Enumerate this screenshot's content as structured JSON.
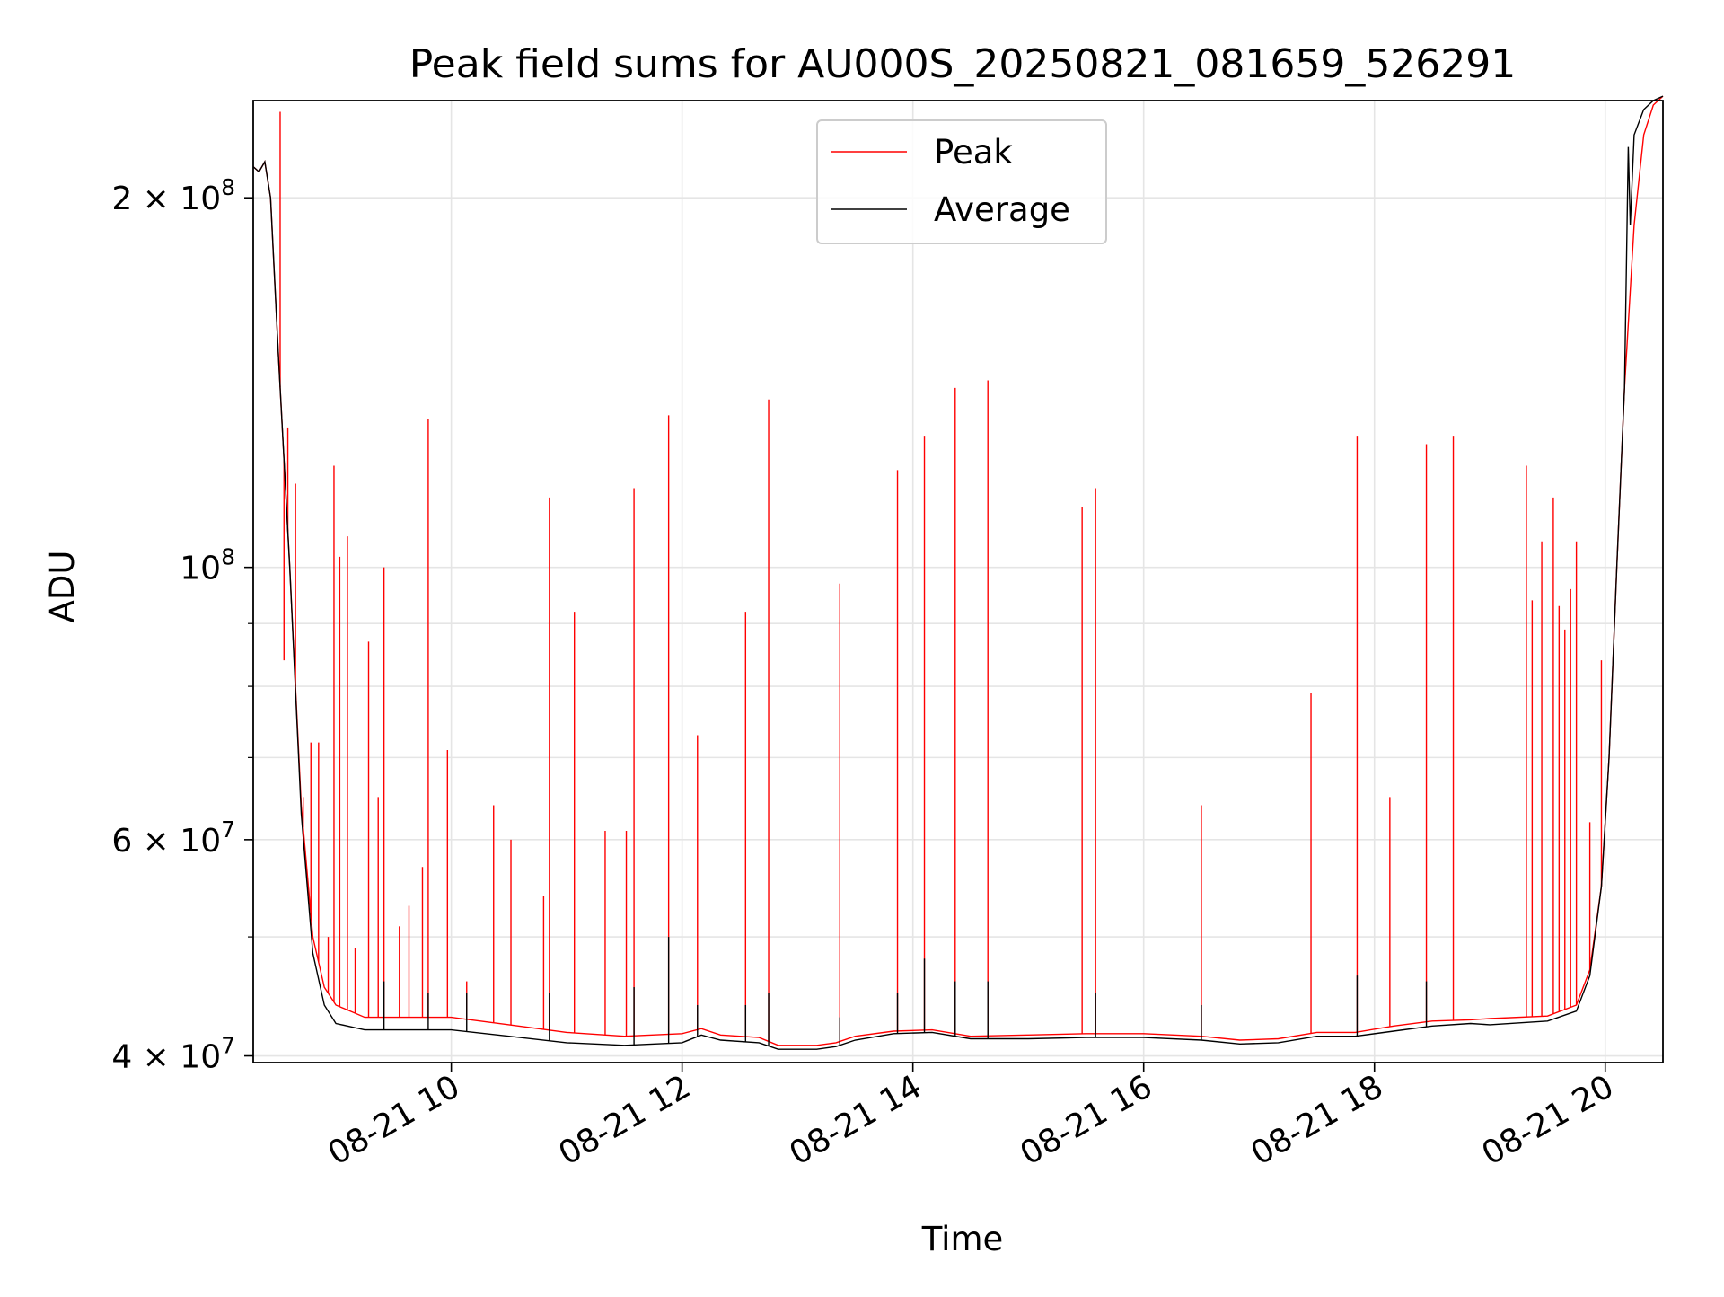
{
  "chart_data": {
    "type": "line",
    "title": "Peak field sums for AU000S_20250821_081659_526291",
    "xlabel": "Time",
    "ylabel": "ADU",
    "x_scale": "time",
    "y_scale": "log",
    "xlim": [
      "2025-08-21 08:17",
      "2025-08-21 20:30"
    ],
    "ylim": [
      39500000,
      240000000
    ],
    "grid": true,
    "legend_position": "top-center",
    "x_ticks": [
      {
        "value": "2025-08-21 10:00",
        "label": "08-21 10"
      },
      {
        "value": "2025-08-21 12:00",
        "label": "08-21 12"
      },
      {
        "value": "2025-08-21 14:00",
        "label": "08-21 14"
      },
      {
        "value": "2025-08-21 16:00",
        "label": "08-21 16"
      },
      {
        "value": "2025-08-21 18:00",
        "label": "08-21 18"
      },
      {
        "value": "2025-08-21 20:00",
        "label": "08-21 20"
      }
    ],
    "y_ticks": [
      {
        "value": 40000000,
        "label_base": "4 × 10",
        "label_exp": "7"
      },
      {
        "value": 60000000,
        "label_base": "6 × 10",
        "label_exp": "7"
      },
      {
        "value": 100000000,
        "label_base": "10",
        "label_exp": "8"
      },
      {
        "value": 200000000,
        "label_base": "2 × 10",
        "label_exp": "8"
      }
    ],
    "y_minor_ticks": [
      50000000,
      70000000,
      80000000,
      90000000
    ],
    "series": [
      {
        "name": "Peak",
        "color": "#ff0000",
        "baseline": [
          [
            "2025-08-21 08:17",
            212000000
          ],
          [
            "2025-08-21 08:20",
            210000000
          ],
          [
            "2025-08-21 08:23",
            214000000
          ],
          [
            "2025-08-21 08:26",
            200000000
          ],
          [
            "2025-08-21 08:30",
            150000000
          ],
          [
            "2025-08-21 08:36",
            100000000
          ],
          [
            "2025-08-21 08:42",
            64000000
          ],
          [
            "2025-08-21 08:48",
            50000000
          ],
          [
            "2025-08-21 08:54",
            45500000
          ],
          [
            "2025-08-21 09:00",
            44000000
          ],
          [
            "2025-08-21 09:15",
            43000000
          ],
          [
            "2025-08-21 09:30",
            43000000
          ],
          [
            "2025-08-21 10:00",
            43000000
          ],
          [
            "2025-08-21 10:30",
            42400000
          ],
          [
            "2025-08-21 11:00",
            41800000
          ],
          [
            "2025-08-21 11:30",
            41500000
          ],
          [
            "2025-08-21 12:00",
            41700000
          ],
          [
            "2025-08-21 12:10",
            42100000
          ],
          [
            "2025-08-21 12:20",
            41600000
          ],
          [
            "2025-08-21 12:40",
            41400000
          ],
          [
            "2025-08-21 12:50",
            40800000
          ],
          [
            "2025-08-21 13:10",
            40800000
          ],
          [
            "2025-08-21 13:20",
            41000000
          ],
          [
            "2025-08-21 13:30",
            41500000
          ],
          [
            "2025-08-21 13:50",
            41900000
          ],
          [
            "2025-08-21 14:10",
            42000000
          ],
          [
            "2025-08-21 14:30",
            41500000
          ],
          [
            "2025-08-21 15:00",
            41600000
          ],
          [
            "2025-08-21 15:30",
            41700000
          ],
          [
            "2025-08-21 16:00",
            41700000
          ],
          [
            "2025-08-21 16:30",
            41500000
          ],
          [
            "2025-08-21 16:50",
            41200000
          ],
          [
            "2025-08-21 17:10",
            41300000
          ],
          [
            "2025-08-21 17:30",
            41800000
          ],
          [
            "2025-08-21 17:50",
            41800000
          ],
          [
            "2025-08-21 18:10",
            42300000
          ],
          [
            "2025-08-21 18:30",
            42700000
          ],
          [
            "2025-08-21 18:50",
            42800000
          ],
          [
            "2025-08-21 19:00",
            42900000
          ],
          [
            "2025-08-21 19:30",
            43100000
          ],
          [
            "2025-08-21 19:45",
            44000000
          ],
          [
            "2025-08-21 19:52",
            47000000
          ],
          [
            "2025-08-21 19:58",
            55000000
          ],
          [
            "2025-08-21 20:02",
            70000000
          ],
          [
            "2025-08-21 20:06",
            100000000
          ],
          [
            "2025-08-21 20:10",
            140000000
          ],
          [
            "2025-08-21 20:15",
            190000000
          ],
          [
            "2025-08-21 20:20",
            225000000
          ],
          [
            "2025-08-21 20:25",
            238000000
          ],
          [
            "2025-08-21 20:30",
            242000000
          ]
        ],
        "spikes": [
          [
            "2025-08-21 08:31",
            235000000
          ],
          [
            "2025-08-21 08:33",
            84000000
          ],
          [
            "2025-08-21 08:35",
            130000000
          ],
          [
            "2025-08-21 08:39",
            117000000
          ],
          [
            "2025-08-21 08:43",
            65000000
          ],
          [
            "2025-08-21 08:47",
            72000000
          ],
          [
            "2025-08-21 08:51",
            72000000
          ],
          [
            "2025-08-21 08:56",
            50000000
          ],
          [
            "2025-08-21 08:59",
            121000000
          ],
          [
            "2025-08-21 09:02",
            102000000
          ],
          [
            "2025-08-21 09:06",
            106000000
          ],
          [
            "2025-08-21 09:10",
            49000000
          ],
          [
            "2025-08-21 09:17",
            87000000
          ],
          [
            "2025-08-21 09:22",
            65000000
          ],
          [
            "2025-08-21 09:25",
            100000000
          ],
          [
            "2025-08-21 09:33",
            51000000
          ],
          [
            "2025-08-21 09:38",
            53000000
          ],
          [
            "2025-08-21 09:45",
            57000000
          ],
          [
            "2025-08-21 09:48",
            132000000
          ],
          [
            "2025-08-21 09:58",
            71000000
          ],
          [
            "2025-08-21 10:08",
            46000000
          ],
          [
            "2025-08-21 10:22",
            64000000
          ],
          [
            "2025-08-21 10:31",
            60000000
          ],
          [
            "2025-08-21 10:48",
            54000000
          ],
          [
            "2025-08-21 10:51",
            114000000
          ],
          [
            "2025-08-21 11:04",
            92000000
          ],
          [
            "2025-08-21 11:20",
            61000000
          ],
          [
            "2025-08-21 11:31",
            61000000
          ],
          [
            "2025-08-21 11:35",
            116000000
          ],
          [
            "2025-08-21 11:53",
            133000000
          ],
          [
            "2025-08-21 12:08",
            73000000
          ],
          [
            "2025-08-21 12:33",
            92000000
          ],
          [
            "2025-08-21 12:45",
            137000000
          ],
          [
            "2025-08-21 13:22",
            97000000
          ],
          [
            "2025-08-21 13:52",
            120000000
          ],
          [
            "2025-08-21 14:06",
            128000000
          ],
          [
            "2025-08-21 14:22",
            140000000
          ],
          [
            "2025-08-21 14:39",
            142000000
          ],
          [
            "2025-08-21 15:28",
            112000000
          ],
          [
            "2025-08-21 15:35",
            116000000
          ],
          [
            "2025-08-21 16:30",
            64000000
          ],
          [
            "2025-08-21 17:27",
            79000000
          ],
          [
            "2025-08-21 17:51",
            128000000
          ],
          [
            "2025-08-21 18:08",
            65000000
          ],
          [
            "2025-08-21 18:27",
            126000000
          ],
          [
            "2025-08-21 18:41",
            128000000
          ],
          [
            "2025-08-21 19:19",
            121000000
          ],
          [
            "2025-08-21 19:22",
            94000000
          ],
          [
            "2025-08-21 19:27",
            105000000
          ],
          [
            "2025-08-21 19:33",
            114000000
          ],
          [
            "2025-08-21 19:36",
            93000000
          ],
          [
            "2025-08-21 19:39",
            89000000
          ],
          [
            "2025-08-21 19:42",
            96000000
          ],
          [
            "2025-08-21 19:45",
            105000000
          ],
          [
            "2025-08-21 19:52",
            62000000
          ],
          [
            "2025-08-21 19:58",
            84000000
          ]
        ]
      },
      {
        "name": "Average",
        "color": "#000000",
        "points": [
          [
            "2025-08-21 08:17",
            212000000
          ],
          [
            "2025-08-21 08:20",
            210000000
          ],
          [
            "2025-08-21 08:23",
            214000000
          ],
          [
            "2025-08-21 08:26",
            200000000
          ],
          [
            "2025-08-21 08:30",
            150000000
          ],
          [
            "2025-08-21 08:36",
            100000000
          ],
          [
            "2025-08-21 08:42",
            63000000
          ],
          [
            "2025-08-21 08:48",
            48500000
          ],
          [
            "2025-08-21 08:54",
            44000000
          ],
          [
            "2025-08-21 09:00",
            42500000
          ],
          [
            "2025-08-21 09:15",
            42000000
          ],
          [
            "2025-08-21 09:30",
            42000000
          ],
          [
            "2025-08-21 10:00",
            42000000
          ],
          [
            "2025-08-21 10:30",
            41500000
          ],
          [
            "2025-08-21 11:00",
            41000000
          ],
          [
            "2025-08-21 11:30",
            40800000
          ],
          [
            "2025-08-21 12:00",
            41000000
          ],
          [
            "2025-08-21 12:10",
            41600000
          ],
          [
            "2025-08-21 12:20",
            41200000
          ],
          [
            "2025-08-21 12:40",
            41000000
          ],
          [
            "2025-08-21 12:50",
            40500000
          ],
          [
            "2025-08-21 13:10",
            40500000
          ],
          [
            "2025-08-21 13:20",
            40700000
          ],
          [
            "2025-08-21 13:30",
            41200000
          ],
          [
            "2025-08-21 13:50",
            41700000
          ],
          [
            "2025-08-21 14:10",
            41800000
          ],
          [
            "2025-08-21 14:30",
            41300000
          ],
          [
            "2025-08-21 15:00",
            41300000
          ],
          [
            "2025-08-21 15:30",
            41400000
          ],
          [
            "2025-08-21 16:00",
            41400000
          ],
          [
            "2025-08-21 16:30",
            41200000
          ],
          [
            "2025-08-21 16:50",
            40900000
          ],
          [
            "2025-08-21 17:10",
            41000000
          ],
          [
            "2025-08-21 17:30",
            41500000
          ],
          [
            "2025-08-21 17:50",
            41500000
          ],
          [
            "2025-08-21 18:10",
            41900000
          ],
          [
            "2025-08-21 18:30",
            42300000
          ],
          [
            "2025-08-21 18:50",
            42500000
          ],
          [
            "2025-08-21 19:00",
            42400000
          ],
          [
            "2025-08-21 19:30",
            42700000
          ],
          [
            "2025-08-21 19:45",
            43500000
          ],
          [
            "2025-08-21 19:52",
            46500000
          ],
          [
            "2025-08-21 19:58",
            55000000
          ],
          [
            "2025-08-21 20:02",
            70000000
          ],
          [
            "2025-08-21 20:06",
            100000000
          ],
          [
            "2025-08-21 20:10",
            140000000
          ],
          [
            "2025-08-21 20:12",
            220000000
          ],
          [
            "2025-08-21 20:13",
            190000000
          ],
          [
            "2025-08-21 20:15",
            225000000
          ],
          [
            "2025-08-21 20:20",
            236000000
          ],
          [
            "2025-08-21 20:25",
            240000000
          ],
          [
            "2025-08-21 20:30",
            242000000
          ]
        ],
        "spikes": [
          [
            "2025-08-21 09:25",
            46000000
          ],
          [
            "2025-08-21 09:48",
            45000000
          ],
          [
            "2025-08-21 10:08",
            45000000
          ],
          [
            "2025-08-21 10:51",
            45000000
          ],
          [
            "2025-08-21 11:35",
            45500000
          ],
          [
            "2025-08-21 11:53",
            50000000
          ],
          [
            "2025-08-21 12:08",
            44000000
          ],
          [
            "2025-08-21 12:33",
            44000000
          ],
          [
            "2025-08-21 12:45",
            45000000
          ],
          [
            "2025-08-21 13:22",
            43000000
          ],
          [
            "2025-08-21 13:52",
            45000000
          ],
          [
            "2025-08-21 14:06",
            48000000
          ],
          [
            "2025-08-21 14:22",
            46000000
          ],
          [
            "2025-08-21 14:39",
            46000000
          ],
          [
            "2025-08-21 15:35",
            45000000
          ],
          [
            "2025-08-21 16:30",
            44000000
          ],
          [
            "2025-08-21 17:51",
            46500000
          ],
          [
            "2025-08-21 18:27",
            46000000
          ]
        ]
      }
    ]
  }
}
